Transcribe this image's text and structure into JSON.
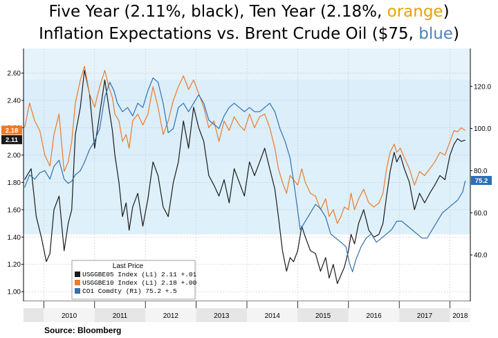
{
  "title_line1": {
    "part1": "Five Year (2.11%, black), Ten Year (2.18%, ",
    "orange_word": "orange",
    "part2": ")"
  },
  "title_line2": {
    "part1": "Inflation Expectations  vs. Brent Crude Oil ($75, ",
    "blue_word": "blue",
    "part2": ")"
  },
  "source": "Source: Bloomberg",
  "colors": {
    "usggbe05": "#1a1a1a",
    "usggbe10": "#ec7a2a",
    "co1": "#2f6fb4",
    "bg_light": "#e6f3fb",
    "bg_mid": "#d2eaf7"
  },
  "chart_data": {
    "type": "line",
    "x_tick_labels": [
      "2010",
      "2011",
      "2012",
      "2013",
      "2014",
      "2015",
      "2016",
      "2017",
      "2018"
    ],
    "x_range": [
      2009.6,
      2018.4
    ],
    "left_axis": {
      "ylim": [
        0.93,
        2.78
      ],
      "ticks": [
        1.0,
        1.2,
        1.4,
        1.6,
        1.8,
        2.0,
        2.2,
        2.4,
        2.6
      ],
      "tick_labels": [
        "1.00",
        "1.20",
        "1.40",
        "1.60",
        "1.80",
        "2.00",
        "2.20",
        "2.40",
        "2.60"
      ]
    },
    "right_axis": {
      "ylim": [
        18,
        138
      ],
      "ticks": [
        40,
        60,
        80,
        100,
        120
      ],
      "tick_labels": [
        "40.0",
        "60.0",
        "80.0",
        "100.0",
        "120.0"
      ]
    },
    "end_tags": [
      {
        "label": "2.18",
        "axis": "left",
        "value": 2.18,
        "color": "#ec7a2a"
      },
      {
        "label": "2.11",
        "axis": "left",
        "value": 2.11,
        "color": "#1a1a1a"
      },
      {
        "label": "75.2",
        "axis": "right",
        "value": 75.2,
        "color": "#2f6fb4"
      }
    ],
    "legend": {
      "header": "Last Price",
      "rows": [
        {
          "text": "USGGBE05 Index  (L1) 2.11  +.01",
          "color": "#1a1a1a"
        },
        {
          "text": "USGGBE10 Index  (L1) 2.18  +.00",
          "color": "#ec7a2a"
        },
        {
          "text": "CO1 Comdty  (R1)     75.2  +.5",
          "color": "#2f6fb4"
        }
      ]
    },
    "series": [
      {
        "name": "USGGBE05 Index",
        "axis": "left",
        "color": "#1a1a1a",
        "x": [
          2009.62,
          2009.75,
          2009.85,
          2009.95,
          2010.05,
          2010.12,
          2010.2,
          2010.3,
          2010.4,
          2010.48,
          2010.55,
          2010.62,
          2010.72,
          2010.8,
          2010.9,
          2011.0,
          2011.1,
          2011.2,
          2011.28,
          2011.35,
          2011.4,
          2011.48,
          2011.55,
          2011.62,
          2011.68,
          2011.75,
          2011.85,
          2011.95,
          2012.05,
          2012.15,
          2012.25,
          2012.35,
          2012.45,
          2012.55,
          2012.65,
          2012.75,
          2012.85,
          2012.95,
          2013.05,
          2013.15,
          2013.25,
          2013.35,
          2013.45,
          2013.55,
          2013.65,
          2013.75,
          2013.85,
          2013.95,
          2014.05,
          2014.15,
          2014.25,
          2014.35,
          2014.45,
          2014.55,
          2014.62,
          2014.7,
          2014.78,
          2014.85,
          2014.92,
          2015.0,
          2015.08,
          2015.15,
          2015.25,
          2015.35,
          2015.45,
          2015.55,
          2015.62,
          2015.7,
          2015.78,
          2015.85,
          2015.92,
          2016.0,
          2016.05,
          2016.12,
          2016.2,
          2016.3,
          2016.4,
          2016.5,
          2016.6,
          2016.68,
          2016.75,
          2016.82,
          2016.9,
          2016.95,
          2017.02,
          2017.1,
          2017.2,
          2017.3,
          2017.4,
          2017.5,
          2017.6,
          2017.7,
          2017.8,
          2017.9,
          2018.0,
          2018.08,
          2018.15,
          2018.22,
          2018.3
        ],
        "values": [
          1.82,
          1.9,
          1.55,
          1.4,
          1.22,
          1.28,
          1.6,
          1.7,
          1.3,
          1.5,
          1.6,
          2.15,
          2.35,
          2.62,
          2.45,
          2.05,
          2.3,
          2.55,
          2.35,
          2.18,
          2.0,
          1.8,
          1.55,
          1.65,
          1.45,
          1.62,
          1.72,
          1.48,
          1.68,
          1.95,
          1.85,
          1.62,
          1.55,
          1.8,
          1.95,
          2.25,
          2.05,
          2.35,
          2.2,
          2.1,
          1.85,
          1.78,
          1.7,
          1.82,
          1.65,
          1.9,
          1.8,
          1.7,
          1.95,
          1.85,
          1.95,
          2.05,
          1.9,
          1.75,
          1.55,
          1.3,
          1.15,
          1.25,
          1.22,
          1.3,
          1.48,
          1.4,
          1.3,
          1.28,
          1.15,
          1.25,
          1.1,
          1.2,
          1.06,
          1.12,
          1.18,
          1.3,
          1.42,
          1.35,
          1.5,
          1.6,
          1.45,
          1.4,
          1.42,
          1.5,
          1.7,
          1.88,
          2.02,
          1.95,
          2.0,
          1.9,
          1.8,
          1.6,
          1.72,
          1.65,
          1.72,
          1.78,
          1.85,
          1.82,
          2.0,
          2.08,
          2.12,
          2.1,
          2.11
        ]
      },
      {
        "name": "USGGBE10 Index",
        "axis": "left",
        "color": "#ec7a2a",
        "x": [
          2009.62,
          2009.72,
          2009.82,
          2009.92,
          2010.02,
          2010.12,
          2010.2,
          2010.3,
          2010.4,
          2010.48,
          2010.55,
          2010.62,
          2010.72,
          2010.8,
          2010.9,
          2011.0,
          2011.1,
          2011.2,
          2011.28,
          2011.35,
          2011.4,
          2011.48,
          2011.55,
          2011.62,
          2011.68,
          2011.75,
          2011.85,
          2011.95,
          2012.05,
          2012.15,
          2012.25,
          2012.35,
          2012.45,
          2012.55,
          2012.65,
          2012.75,
          2012.85,
          2012.95,
          2013.05,
          2013.15,
          2013.25,
          2013.35,
          2013.45,
          2013.55,
          2013.65,
          2013.75,
          2013.85,
          2013.95,
          2014.05,
          2014.15,
          2014.25,
          2014.35,
          2014.45,
          2014.55,
          2014.62,
          2014.7,
          2014.78,
          2014.85,
          2014.92,
          2015.0,
          2015.08,
          2015.15,
          2015.25,
          2015.35,
          2015.45,
          2015.55,
          2015.62,
          2015.7,
          2015.78,
          2015.85,
          2015.92,
          2016.0,
          2016.05,
          2016.12,
          2016.2,
          2016.3,
          2016.4,
          2016.5,
          2016.6,
          2016.68,
          2016.75,
          2016.82,
          2016.9,
          2016.95,
          2017.02,
          2017.1,
          2017.2,
          2017.3,
          2017.4,
          2017.5,
          2017.6,
          2017.7,
          2017.8,
          2017.9,
          2018.0,
          2018.08,
          2018.15,
          2018.22,
          2018.3
        ],
        "values": [
          2.2,
          2.38,
          2.25,
          2.18,
          2.0,
          1.92,
          2.15,
          2.3,
          1.88,
          1.95,
          2.1,
          2.38,
          2.55,
          2.65,
          2.45,
          2.35,
          2.5,
          2.62,
          2.5,
          2.42,
          2.3,
          2.25,
          2.1,
          2.15,
          2.05,
          2.25,
          2.3,
          2.22,
          2.3,
          2.5,
          2.35,
          2.15,
          2.25,
          2.4,
          2.5,
          2.58,
          2.48,
          2.55,
          2.45,
          2.35,
          2.2,
          2.25,
          2.1,
          2.25,
          2.18,
          2.28,
          2.22,
          2.18,
          2.3,
          2.2,
          2.28,
          2.3,
          2.2,
          2.05,
          1.9,
          1.8,
          1.72,
          1.85,
          1.82,
          1.78,
          1.9,
          1.8,
          1.72,
          1.7,
          1.6,
          1.68,
          1.55,
          1.6,
          1.5,
          1.55,
          1.62,
          1.6,
          1.72,
          1.6,
          1.68,
          1.75,
          1.65,
          1.62,
          1.65,
          1.72,
          1.9,
          2.02,
          2.08,
          2.02,
          2.05,
          1.98,
          1.9,
          1.78,
          1.88,
          1.85,
          1.9,
          1.95,
          2.02,
          2.0,
          2.1,
          2.18,
          2.17,
          2.2,
          2.18
        ]
      },
      {
        "name": "CO1 Comdty",
        "axis": "right",
        "color": "#2f6fb4",
        "x": [
          2009.62,
          2009.72,
          2009.82,
          2009.92,
          2010.02,
          2010.12,
          2010.2,
          2010.3,
          2010.4,
          2010.48,
          2010.55,
          2010.62,
          2010.72,
          2010.8,
          2010.9,
          2011.0,
          2011.1,
          2011.2,
          2011.3,
          2011.38,
          2011.45,
          2011.55,
          2011.65,
          2011.75,
          2011.85,
          2011.95,
          2012.05,
          2012.15,
          2012.25,
          2012.35,
          2012.45,
          2012.55,
          2012.65,
          2012.75,
          2012.85,
          2012.95,
          2013.05,
          2013.15,
          2013.25,
          2013.35,
          2013.45,
          2013.55,
          2013.65,
          2013.75,
          2013.85,
          2013.95,
          2014.05,
          2014.15,
          2014.25,
          2014.35,
          2014.45,
          2014.55,
          2014.65,
          2014.75,
          2014.85,
          2014.95,
          2015.05,
          2015.15,
          2015.25,
          2015.35,
          2015.45,
          2015.55,
          2015.65,
          2015.75,
          2015.85,
          2015.95,
          2016.02,
          2016.08,
          2016.15,
          2016.25,
          2016.35,
          2016.45,
          2016.55,
          2016.65,
          2016.75,
          2016.85,
          2016.95,
          2017.05,
          2017.15,
          2017.25,
          2017.35,
          2017.45,
          2017.55,
          2017.65,
          2017.75,
          2017.85,
          2017.95,
          2018.05,
          2018.15,
          2018.25,
          2018.3
        ],
        "values": [
          72,
          78,
          76,
          79,
          80,
          76,
          82,
          85,
          76,
          74,
          75,
          78,
          80,
          84,
          90,
          94,
          100,
          115,
          122,
          118,
          112,
          108,
          110,
          106,
          112,
          110,
          118,
          124,
          122,
          112,
          98,
          100,
          110,
          112,
          108,
          112,
          116,
          112,
          104,
          102,
          100,
          106,
          110,
          112,
          110,
          108,
          110,
          108,
          108,
          110,
          112,
          108,
          100,
          94,
          86,
          70,
          52,
          56,
          60,
          64,
          62,
          58,
          50,
          48,
          46,
          44,
          36,
          32,
          38,
          44,
          48,
          50,
          46,
          48,
          50,
          52,
          56,
          56,
          54,
          52,
          50,
          48,
          48,
          52,
          56,
          60,
          62,
          64,
          66,
          70,
          75.2
        ]
      }
    ]
  }
}
